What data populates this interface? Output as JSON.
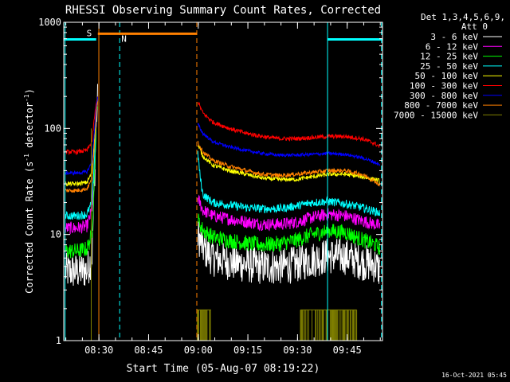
{
  "chart_data": {
    "type": "line",
    "title": "RHESSI Observing Summary Count Rates, Corrected",
    "xlabel": "Start Time (05-Aug-07 08:19:22)",
    "ylabel_main": "Corrected Count Rate (s",
    "ylabel_sup": "-1",
    "ylabel_tail": " detector",
    "ylabel_end": ")",
    "yscale": "log",
    "ylim": [
      1,
      1000
    ],
    "y_ticks": [
      1,
      10,
      100,
      1000
    ],
    "y_tick_labels": [
      "1",
      "10",
      "100",
      "1000"
    ],
    "xlim_minutes": [
      0,
      96.3
    ],
    "x_ticks_minutes": [
      10.63,
      25.63,
      40.63,
      55.63,
      70.63,
      85.63
    ],
    "x_tick_labels": [
      "08:30",
      "08:45",
      "09:00",
      "09:15",
      "09:30",
      "09:45"
    ],
    "detectors_line1": "Det 1,3,4,5,6,9,",
    "detectors_line2": "Att 0",
    "timestamp": "16-Oct-2021 05:45",
    "flags": [
      {
        "label": "S",
        "color": "#ff8000",
        "level": 700
      },
      {
        "label": "N",
        "color": "#00ffff",
        "level": 700
      }
    ],
    "saa_bar": {
      "color": "#ff8000",
      "start": 10.3,
      "end": 40.2,
      "level": 780
    },
    "night_bars": [
      {
        "color": "#00ffff",
        "start": 0,
        "end": 9.8,
        "level": 690
      },
      {
        "color": "#00ffff",
        "start": 79.7,
        "end": 96.3,
        "level": 690
      }
    ],
    "vlines": [
      {
        "x": 0.4,
        "color": "#00ffff",
        "style": "solid"
      },
      {
        "x": 10.6,
        "color": "#ff8000",
        "style": "solid"
      },
      {
        "x": 16.9,
        "color": "#00ffff",
        "style": "dashed"
      },
      {
        "x": 40.2,
        "color": "#ff8000",
        "style": "dashed"
      },
      {
        "x": 79.7,
        "color": "#00ffff",
        "style": "solid"
      },
      {
        "x": 96.0,
        "color": "#00ffff",
        "style": "dashed"
      }
    ],
    "series": [
      {
        "name": "3 - 6 keV",
        "color": "#ffffff",
        "seg1": [
          [
            0.5,
            4.5
          ],
          [
            4,
            4.5
          ],
          [
            7,
            4.6
          ],
          [
            8.5,
            6
          ],
          [
            9.3,
            35
          ],
          [
            9.8,
            110
          ],
          [
            10.3,
            200
          ]
        ],
        "seg2": [
          [
            40.5,
            10
          ],
          [
            42,
            7.5
          ],
          [
            45,
            6
          ],
          [
            50,
            5.5
          ],
          [
            55,
            5.2
          ],
          [
            60,
            5
          ],
          [
            65,
            5
          ],
          [
            70,
            5.2
          ],
          [
            75,
            5.8
          ],
          [
            80,
            6.3
          ],
          [
            85,
            6.2
          ],
          [
            90,
            5.5
          ],
          [
            94,
            5.2
          ],
          [
            95.5,
            4.6
          ]
        ],
        "noise": 0.35
      },
      {
        "name": "6 - 12 keV",
        "color": "#ff00ff",
        "seg1": [
          [
            0.5,
            11.5
          ],
          [
            4,
            11.5
          ],
          [
            7,
            12
          ],
          [
            8.5,
            17
          ],
          [
            9.3,
            50
          ],
          [
            9.8,
            110
          ],
          [
            10.3,
            200
          ]
        ],
        "seg2": [
          [
            40.5,
            22
          ],
          [
            42,
            17
          ],
          [
            45,
            15
          ],
          [
            50,
            14
          ],
          [
            55,
            13.2
          ],
          [
            60,
            12.5
          ],
          [
            65,
            12.5
          ],
          [
            70,
            13
          ],
          [
            75,
            14.5
          ],
          [
            80,
            15.5
          ],
          [
            85,
            15
          ],
          [
            90,
            13.5
          ],
          [
            94,
            12.5
          ],
          [
            95.5,
            12
          ]
        ],
        "noise": 0.12
      },
      {
        "name": "12 - 25 keV",
        "color": "#00ff00",
        "seg1": [
          [
            0.5,
            7
          ],
          [
            4,
            7
          ],
          [
            7,
            7.3
          ],
          [
            8.5,
            10
          ],
          [
            9.3,
            40
          ],
          [
            9.8,
            110
          ],
          [
            10.3,
            200
          ]
        ],
        "seg2": [
          [
            40.5,
            14
          ],
          [
            42,
            11
          ],
          [
            45,
            9.5
          ],
          [
            50,
            8.8
          ],
          [
            55,
            8.3
          ],
          [
            60,
            8
          ],
          [
            65,
            8.2
          ],
          [
            70,
            8.8
          ],
          [
            75,
            10
          ],
          [
            80,
            10.8
          ],
          [
            85,
            10.5
          ],
          [
            90,
            9
          ],
          [
            94,
            8
          ],
          [
            95.5,
            7.5
          ]
        ],
        "noise": 0.15
      },
      {
        "name": "25 - 50 keV",
        "color": "#00ffff",
        "seg1": [
          [
            0.5,
            15
          ],
          [
            4,
            15
          ],
          [
            7,
            15.5
          ],
          [
            8.5,
            20
          ],
          [
            9.3,
            55
          ],
          [
            9.8,
            120
          ],
          [
            10.3,
            200
          ]
        ],
        "seg2": [
          [
            40.5,
            60
          ],
          [
            41.2,
            35
          ],
          [
            42,
            24
          ],
          [
            45,
            20
          ],
          [
            50,
            19
          ],
          [
            55,
            18
          ],
          [
            60,
            17.5
          ],
          [
            65,
            17.5
          ],
          [
            70,
            18.5
          ],
          [
            75,
            20
          ],
          [
            80,
            20.5
          ],
          [
            85,
            19.5
          ],
          [
            90,
            18
          ],
          [
            94,
            16.5
          ],
          [
            95.5,
            16
          ]
        ],
        "noise": 0.08
      },
      {
        "name": "50 - 100 keV",
        "color": "#ffff00",
        "seg1": [
          [
            0.5,
            30
          ],
          [
            4,
            30
          ],
          [
            7,
            31
          ],
          [
            8.5,
            38
          ],
          [
            9.3,
            80
          ],
          [
            9.8,
            140
          ],
          [
            10.3,
            200
          ]
        ],
        "seg2": [
          [
            40.5,
            70
          ],
          [
            42,
            55
          ],
          [
            45,
            45
          ],
          [
            50,
            40
          ],
          [
            55,
            37
          ],
          [
            60,
            34
          ],
          [
            65,
            33
          ],
          [
            70,
            33
          ],
          [
            75,
            35
          ],
          [
            80,
            37
          ],
          [
            85,
            37
          ],
          [
            90,
            35
          ],
          [
            94,
            33
          ],
          [
            95.5,
            32
          ]
        ],
        "noise": 0.04
      },
      {
        "name": "100 - 300 keV",
        "color": "#ff0000",
        "seg1": [
          [
            0.5,
            60
          ],
          [
            4,
            60
          ],
          [
            7,
            62
          ],
          [
            8.5,
            75
          ],
          [
            9.3,
            130
          ],
          [
            9.8,
            170
          ],
          [
            10.3,
            200
          ]
        ],
        "seg2": [
          [
            40.5,
            180
          ],
          [
            42,
            140
          ],
          [
            45,
            115
          ],
          [
            50,
            100
          ],
          [
            55,
            90
          ],
          [
            60,
            84
          ],
          [
            65,
            80
          ],
          [
            70,
            80
          ],
          [
            75,
            82
          ],
          [
            80,
            84
          ],
          [
            85,
            84
          ],
          [
            90,
            80
          ],
          [
            94,
            72
          ],
          [
            95.5,
            67
          ]
        ],
        "noise": 0.04
      },
      {
        "name": "300 - 800 keV",
        "color": "#0000ff",
        "seg1": [
          [
            0.5,
            38
          ],
          [
            4,
            38
          ],
          [
            7,
            39
          ],
          [
            8.5,
            48
          ],
          [
            9.3,
            100
          ],
          [
            9.8,
            160
          ],
          [
            10.3,
            200
          ]
        ],
        "seg2": [
          [
            40.5,
            110
          ],
          [
            42,
            90
          ],
          [
            45,
            75
          ],
          [
            50,
            67
          ],
          [
            55,
            62
          ],
          [
            60,
            58
          ],
          [
            65,
            56
          ],
          [
            70,
            56
          ],
          [
            75,
            57
          ],
          [
            80,
            58
          ],
          [
            85,
            57
          ],
          [
            90,
            53
          ],
          [
            94,
            48
          ],
          [
            95.5,
            45
          ]
        ],
        "noise": 0.03
      },
      {
        "name": "800 - 7000 keV",
        "color": "#ff8000",
        "seg1": [
          [
            0.5,
            26
          ],
          [
            4,
            26
          ],
          [
            7,
            27
          ],
          [
            8.5,
            33
          ],
          [
            9.3,
            70
          ],
          [
            9.8,
            130
          ],
          [
            10.3,
            200
          ]
        ],
        "seg2": [
          [
            40.5,
            75
          ],
          [
            42,
            60
          ],
          [
            45,
            50
          ],
          [
            50,
            44
          ],
          [
            55,
            40
          ],
          [
            60,
            37
          ],
          [
            65,
            36
          ],
          [
            70,
            37
          ],
          [
            75,
            38.5
          ],
          [
            80,
            40
          ],
          [
            85,
            40
          ],
          [
            90,
            37
          ],
          [
            94,
            32
          ],
          [
            95.5,
            29
          ]
        ],
        "noise": 0.04
      },
      {
        "name": "7000 - 15000 keV",
        "color": "#808000",
        "seg1": [],
        "seg2": [],
        "noise": 0
      }
    ]
  }
}
